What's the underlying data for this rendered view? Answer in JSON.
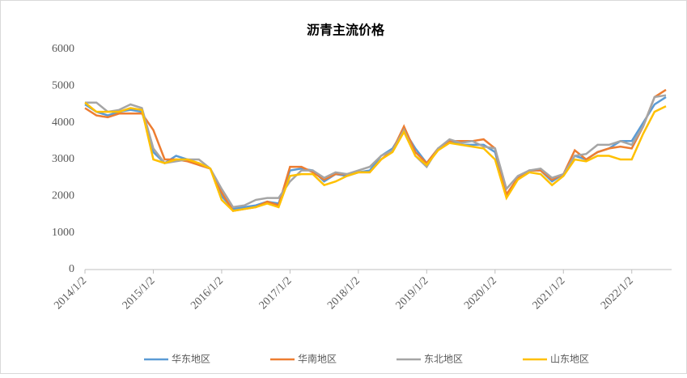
{
  "chart_data": {
    "type": "line",
    "title": "沥青主流价格",
    "x": [
      "2014/1/2",
      "2014/3/2",
      "2014/5/2",
      "2014/7/2",
      "2014/9/2",
      "2014/11/2",
      "2015/1/2",
      "2015/3/2",
      "2015/5/2",
      "2015/7/2",
      "2015/9/2",
      "2015/11/2",
      "2016/1/2",
      "2016/3/2",
      "2016/5/2",
      "2016/7/2",
      "2016/9/2",
      "2016/11/2",
      "2017/1/2",
      "2017/3/2",
      "2017/5/2",
      "2017/7/2",
      "2017/9/2",
      "2017/11/2",
      "2018/1/2",
      "2018/3/2",
      "2018/5/2",
      "2018/7/2",
      "2018/9/2",
      "2018/11/2",
      "2019/1/2",
      "2019/3/2",
      "2019/5/2",
      "2019/7/2",
      "2019/9/2",
      "2019/11/2",
      "2020/1/2",
      "2020/3/2",
      "2020/5/2",
      "2020/7/2",
      "2020/9/2",
      "2020/11/2",
      "2021/1/2",
      "2021/3/2",
      "2021/5/2",
      "2021/7/2",
      "2021/9/2",
      "2021/11/2",
      "2022/1/2",
      "2022/3/2",
      "2022/5/2",
      "2022/7/2"
    ],
    "series": [
      {
        "name": "华东地区",
        "color": "#5b9bd5",
        "values": [
          4500,
          4300,
          4200,
          4300,
          4350,
          4300,
          3200,
          2900,
          3100,
          3000,
          2850,
          2750,
          2000,
          1650,
          1700,
          1750,
          1850,
          1800,
          2700,
          2750,
          2700,
          2400,
          2600,
          2550,
          2650,
          2700,
          3100,
          3300,
          3800,
          3300,
          2900,
          3300,
          3500,
          3400,
          3400,
          3400,
          3200,
          2000,
          2500,
          2700,
          2700,
          2400,
          2600,
          3100,
          3000,
          3200,
          3300,
          3500,
          3500,
          4000,
          4500,
          4700
        ]
      },
      {
        "name": "华南地区",
        "color": "#ed7d31",
        "values": [
          4400,
          4200,
          4150,
          4250,
          4250,
          4250,
          3800,
          3000,
          3000,
          2950,
          2850,
          2750,
          2100,
          1600,
          1650,
          1700,
          1850,
          1750,
          2800,
          2800,
          2650,
          2450,
          2600,
          2600,
          2650,
          2650,
          3000,
          3250,
          3900,
          3200,
          2900,
          3300,
          3500,
          3500,
          3500,
          3550,
          3300,
          2050,
          2500,
          2700,
          2700,
          2450,
          2600,
          3250,
          3000,
          3200,
          3300,
          3350,
          3300,
          3900,
          4700,
          4900
        ]
      },
      {
        "name": "东北地区",
        "color": "#a5a5a5",
        "values": [
          4550,
          4550,
          4300,
          4350,
          4500,
          4400,
          3300,
          2900,
          2950,
          3000,
          3000,
          2750,
          2200,
          1700,
          1750,
          1900,
          1950,
          1950,
          2400,
          2700,
          2700,
          2500,
          2650,
          2600,
          2700,
          2800,
          3100,
          3250,
          3800,
          3100,
          2800,
          3300,
          3550,
          3450,
          3500,
          3350,
          3300,
          2200,
          2550,
          2700,
          2750,
          2500,
          2600,
          3100,
          3150,
          3400,
          3400,
          3500,
          3400,
          3900,
          4700,
          4750
        ]
      },
      {
        "name": "山东地区",
        "color": "#ffc000",
        "values": [
          4550,
          4300,
          4300,
          4300,
          4400,
          4350,
          3000,
          2900,
          3000,
          3000,
          2900,
          2750,
          1900,
          1600,
          1650,
          1700,
          1800,
          1700,
          2550,
          2600,
          2600,
          2300,
          2400,
          2550,
          2650,
          2650,
          3000,
          3200,
          3750,
          3100,
          2850,
          3250,
          3450,
          3400,
          3350,
          3300,
          3000,
          1950,
          2450,
          2650,
          2600,
          2300,
          2550,
          3000,
          2950,
          3100,
          3100,
          3000,
          3000,
          3700,
          4300,
          4450
        ]
      }
    ],
    "ylim": [
      0,
      6000
    ],
    "yticks": [
      0,
      1000,
      2000,
      3000,
      4000,
      5000,
      6000
    ],
    "xlim": [
      "2014/1/2",
      "2022/8/2"
    ],
    "xticks": [
      "2014/1/2",
      "2015/1/2",
      "2016/1/2",
      "2017/1/2",
      "2018/1/2",
      "2019/1/2",
      "2020/1/2",
      "2021/1/2",
      "2022/1/2"
    ],
    "legend": "bottom"
  }
}
